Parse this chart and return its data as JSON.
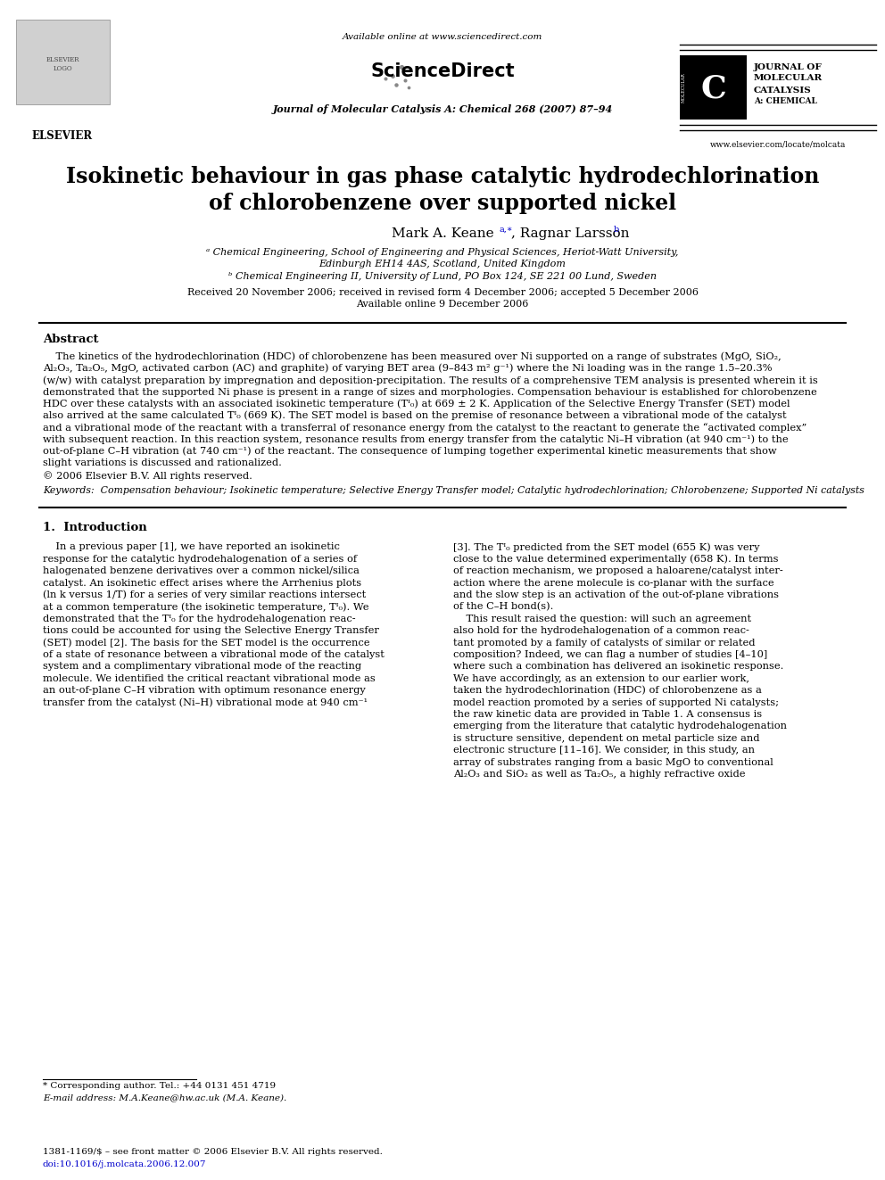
{
  "bg_color": "#ffffff",
  "title_line1": "Isokinetic behaviour in gas phase catalytic hydrodechlorination",
  "title_line2": "of chlorobenzene over supported nickel",
  "header_center": "Available online at www.sciencedirect.com",
  "journal_ref": "Journal of Molecular Catalysis A: Chemical 268 (2007) 87–94",
  "website": "www.elsevier.com/locate/molcata",
  "affil_a": "ᵃ Chemical Engineering, School of Engineering and Physical Sciences, Heriot-Watt University,",
  "affil_a2": "Edinburgh EH14 4AS, Scotland, United Kingdom",
  "affil_b": "ᵇ Chemical Engineering II, University of Lund, PO Box 124, SE 221 00 Lund, Sweden",
  "received": "Received 20 November 2006; received in revised form 4 December 2006; accepted 5 December 2006",
  "available": "Available online 9 December 2006",
  "abstract_title": "Abstract",
  "copyright": "© 2006 Elsevier B.V. All rights reserved.",
  "keywords": "Keywords:  Compensation behaviour; Isokinetic temperature; Selective Energy Transfer model; Catalytic hydrodechlorination; Chlorobenzene; Supported Ni catalysts",
  "section1_title": "1.  Introduction",
  "footnote_star": "* Corresponding author. Tel.: +44 0131 451 4719",
  "footnote_email": "E-mail address: M.A.Keane@hw.ac.uk (M.A. Keane).",
  "footer_issn": "1381-1169/$ – see front matter © 2006 Elsevier B.V. All rights reserved.",
  "footer_doi": "doi:10.1016/j.molcata.2006.12.007",
  "abstract_lines": [
    "    The kinetics of the hydrodechlorination (HDC) of chlorobenzene has been measured over Ni supported on a range of substrates (MgO, SiO₂,",
    "Al₂O₃, Ta₂O₅, MgO, activated carbon (AC) and graphite) of varying BET area (9–843 m² g⁻¹) where the Ni loading was in the range 1.5–20.3%",
    "(w/w) with catalyst preparation by impregnation and deposition-precipitation. The results of a comprehensive TEM analysis is presented wherein it is",
    "demonstrated that the supported Ni phase is present in a range of sizes and morphologies. Compensation behaviour is established for chlorobenzene",
    "HDC over these catalysts with an associated isokinetic temperature (Tᴵ₀) at 669 ± 2 K. Application of the Selective Energy Transfer (SET) model",
    "also arrived at the same calculated Tᴵ₀ (669 K). The SET model is based on the premise of resonance between a vibrational mode of the catalyst",
    "and a vibrational mode of the reactant with a transferral of resonance energy from the catalyst to the reactant to generate the “activated complex”",
    "with subsequent reaction. In this reaction system, resonance results from energy transfer from the catalytic Ni–H vibration (at 940 cm⁻¹) to the",
    "out-of-plane C–H vibration (at 740 cm⁻¹) of the reactant. The consequence of lumping together experimental kinetic measurements that show",
    "slight variations is discussed and rationalized."
  ],
  "intro_col1": [
    "    In a previous paper [1], we have reported an isokinetic",
    "response for the catalytic hydrodehalogenation of a series of",
    "halogenated benzene derivatives over a common nickel/silica",
    "catalyst. An isokinetic effect arises where the Arrhenius plots",
    "(ln k versus 1/T) for a series of very similar reactions intersect",
    "at a common temperature (the isokinetic temperature, Tᴵ₀). We",
    "demonstrated that the Tᴵ₀ for the hydrodehalogenation reac-",
    "tions could be accounted for using the Selective Energy Transfer",
    "(SET) model [2]. The basis for the SET model is the occurrence",
    "of a state of resonance between a vibrational mode of the catalyst",
    "system and a complimentary vibrational mode of the reacting",
    "molecule. We identified the critical reactant vibrational mode as",
    "an out-of-plane C–H vibration with optimum resonance energy",
    "transfer from the catalyst (Ni–H) vibrational mode at 940 cm⁻¹"
  ],
  "intro_col2": [
    "[3]. The Tᴵ₀ predicted from the SET model (655 K) was very",
    "close to the value determined experimentally (658 K). In terms",
    "of reaction mechanism, we proposed a haloarene/catalyst inter-",
    "action where the arene molecule is co-planar with the surface",
    "and the slow step is an activation of the out-of-plane vibrations",
    "of the C–H bond(s).",
    "    This result raised the question: will such an agreement",
    "also hold for the hydrodehalogenation of a common reac-",
    "tant promoted by a family of catalysts of similar or related",
    "composition? Indeed, we can flag a number of studies [4–10]",
    "where such a combination has delivered an isokinetic response.",
    "We have accordingly, as an extension to our earlier work,",
    "taken the hydrodechlorination (HDC) of chlorobenzene as a",
    "model reaction promoted by a series of supported Ni catalysts;",
    "the raw kinetic data are provided in Table 1. A consensus is",
    "emerging from the literature that catalytic hydrodehalogenation",
    "is structure sensitive, dependent on metal particle size and",
    "electronic structure [11–16]. We consider, in this study, an",
    "array of substrates ranging from a basic MgO to conventional",
    "Al₂O₃ and SiO₂ as well as Ta₂O₅, a highly refractive oxide"
  ]
}
